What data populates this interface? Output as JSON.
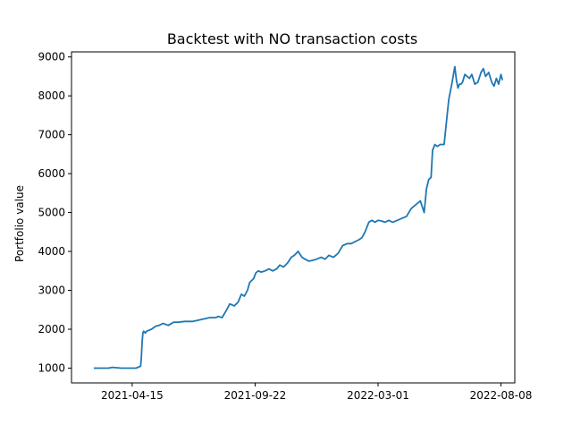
{
  "chart_data": {
    "type": "line",
    "title": "Backtest with NO transaction costs",
    "xlabel": "",
    "ylabel": "Portfolio value",
    "x_tick_labels": [
      "2021-04-15",
      "2021-09-22",
      "2022-03-01",
      "2022-08-08"
    ],
    "y_ticks": [
      1000,
      2000,
      3000,
      4000,
      5000,
      6000,
      7000,
      8000,
      9000
    ],
    "xlim": [
      "2021-01-26",
      "2022-08-26"
    ],
    "ylim": [
      620,
      9130
    ],
    "grid": false,
    "legend": "none",
    "series": [
      {
        "name": "",
        "color": "#1f77b4",
        "x": [
          "2021-02-24",
          "2021-03-15",
          "2021-03-20",
          "2021-04-01",
          "2021-04-20",
          "2021-04-26",
          "2021-04-27",
          "2021-04-28",
          "2021-04-29",
          "2021-04-30",
          "2021-05-02",
          "2021-05-04",
          "2021-05-10",
          "2021-05-16",
          "2021-05-20",
          "2021-05-25",
          "2021-06-01",
          "2021-06-08",
          "2021-06-14",
          "2021-06-22",
          "2021-07-03",
          "2021-07-14",
          "2021-07-25",
          "2021-08-02",
          "2021-08-05",
          "2021-08-10",
          "2021-08-16",
          "2021-08-20",
          "2021-08-26",
          "2021-08-31",
          "2021-09-04",
          "2021-09-08",
          "2021-09-12",
          "2021-09-15",
          "2021-09-20",
          "2021-09-23",
          "2021-09-26",
          "2021-09-30",
          "2021-10-05",
          "2021-10-10",
          "2021-10-15",
          "2021-10-20",
          "2021-10-24",
          "2021-10-29",
          "2021-11-03",
          "2021-11-08",
          "2021-11-12",
          "2021-11-17",
          "2021-11-22",
          "2021-11-26",
          "2021-12-01",
          "2021-12-06",
          "2021-12-11",
          "2021-12-17",
          "2021-12-22",
          "2021-12-27",
          "2022-01-02",
          "2022-01-08",
          "2022-01-14",
          "2022-01-20",
          "2022-01-25",
          "2022-01-30",
          "2022-02-04",
          "2022-02-08",
          "2022-02-12",
          "2022-02-17",
          "2022-02-21",
          "2022-02-25",
          "2022-03-01",
          "2022-03-06",
          "2022-03-10",
          "2022-03-15",
          "2022-03-20",
          "2022-03-26",
          "2022-04-01",
          "2022-04-07",
          "2022-04-13",
          "2022-04-19",
          "2022-04-25",
          "2022-04-30",
          "2022-05-03",
          "2022-05-06",
          "2022-05-09",
          "2022-05-11",
          "2022-05-14",
          "2022-05-17",
          "2022-05-21",
          "2022-05-26",
          "2022-06-01",
          "2022-06-05",
          "2022-06-09",
          "2022-06-11",
          "2022-06-13",
          "2022-06-15",
          "2022-06-17",
          "2022-06-19",
          "2022-06-22",
          "2022-06-25",
          "2022-06-28",
          "2022-07-01",
          "2022-07-05",
          "2022-07-09",
          "2022-07-13",
          "2022-07-16",
          "2022-07-19",
          "2022-07-23",
          "2022-07-27",
          "2022-07-30",
          "2022-08-02",
          "2022-08-05",
          "2022-08-08",
          "2022-08-10"
        ],
        "y": [
          1000,
          1000,
          1020,
          1000,
          1000,
          1050,
          1300,
          1700,
          1900,
          1950,
          1900,
          1950,
          2000,
          2080,
          2100,
          2150,
          2100,
          2180,
          2180,
          2200,
          2200,
          2250,
          2300,
          2300,
          2330,
          2300,
          2500,
          2650,
          2600,
          2700,
          2900,
          2850,
          3000,
          3200,
          3300,
          3450,
          3500,
          3470,
          3500,
          3550,
          3500,
          3550,
          3650,
          3600,
          3700,
          3850,
          3900,
          4000,
          3850,
          3800,
          3750,
          3770,
          3800,
          3850,
          3800,
          3900,
          3850,
          3950,
          4150,
          4200,
          4200,
          4250,
          4300,
          4350,
          4500,
          4750,
          4800,
          4750,
          4800,
          4780,
          4750,
          4800,
          4750,
          4800,
          4850,
          4900,
          5100,
          5200,
          5300,
          5000,
          5600,
          5850,
          5900,
          6600,
          6750,
          6700,
          6750,
          6750,
          7900,
          8300,
          8750,
          8400,
          8200,
          8300,
          8300,
          8350,
          8550,
          8500,
          8450,
          8550,
          8300,
          8350,
          8600,
          8700,
          8500,
          8600,
          8350,
          8250,
          8450,
          8300,
          8550,
          8400
        ]
      }
    ]
  }
}
